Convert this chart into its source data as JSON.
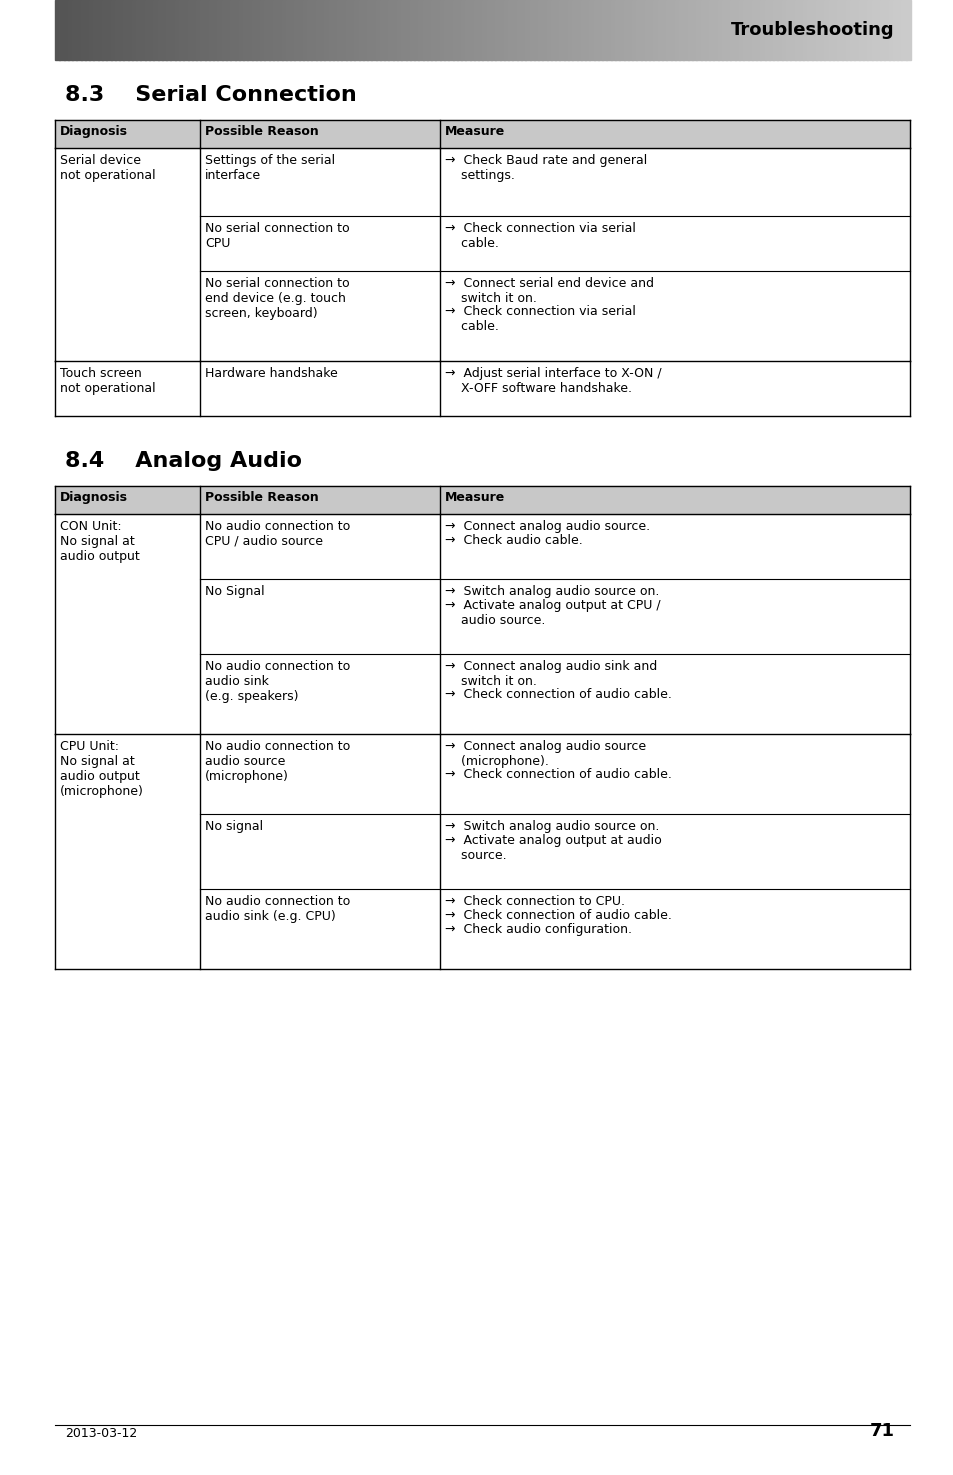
{
  "page_bg": "#ffffff",
  "header_gradient_left": "#555555",
  "header_gradient_right": "#cccccc",
  "header_text": "Troubleshooting",
  "header_text_color": "#000000",
  "section1_title": "8.3    Serial Connection",
  "section2_title": "8.4    Analog Audio",
  "table_header_bg": "#c8c8c8",
  "table_border_color": "#000000",
  "col_headers": [
    "Diagnosis",
    "Possible Reason",
    "Measure"
  ],
  "serial_table": [
    {
      "diagnosis": "Serial device\nnot operational",
      "reasons": [
        "Settings of the serial\ninterface",
        "No serial connection to\nCPU",
        "No serial connection to\nend device (e.g. touch\nscreen, keyboard)"
      ],
      "measures": [
        [
          "→  Check Baud rate and general\n    settings."
        ],
        [
          "→  Check connection via serial\n    cable."
        ],
        [
          "→  Connect serial end device and\n    switch it on.",
          "→  Check connection via serial\n    cable."
        ]
      ]
    },
    {
      "diagnosis": "Touch screen\nnot operational",
      "reasons": [
        "Hardware handshake"
      ],
      "measures": [
        [
          "→  Adjust serial interface to X-ON /\n    X-OFF software handshake."
        ]
      ]
    }
  ],
  "audio_table": [
    {
      "diagnosis": "CON Unit:\nNo signal at\naudio output",
      "reasons": [
        "No audio connection to\nCPU / audio source",
        "No Signal",
        "No audio connection to\naudio sink\n(e.g. speakers)"
      ],
      "measures": [
        [
          "→  Connect analog audio source.",
          "→  Check audio cable."
        ],
        [
          "→  Switch analog audio source on.",
          "→  Activate analog output at CPU /\n    audio source."
        ],
        [
          "→  Connect analog audio sink and\n    switch it on.",
          "→  Check connection of audio cable."
        ]
      ]
    },
    {
      "diagnosis": "CPU Unit:\nNo signal at\naudio output\n(microphone)",
      "reasons": [
        "No audio connection to\naudio source\n(microphone)",
        "No signal",
        "No audio connection to\naudio sink (e.g. CPU)"
      ],
      "measures": [
        [
          "→  Connect analog audio source\n    (microphone).",
          "→  Check connection of audio cable."
        ],
        [
          "→  Switch analog audio source on.",
          "→  Activate analog output at audio\n    source."
        ],
        [
          "→  Check connection to CPU.",
          "→  Check connection of audio cable.",
          "→  Check audio configuration."
        ]
      ]
    }
  ],
  "footer_date": "2013-03-12",
  "footer_page": "71"
}
